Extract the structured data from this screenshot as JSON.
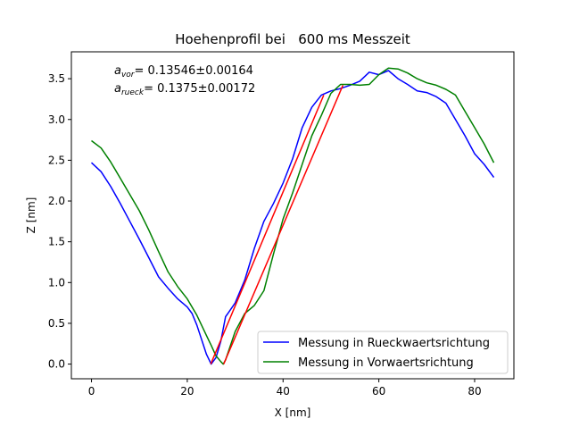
{
  "chart_data": {
    "type": "line",
    "title": "Hoehenprofil bei   600 ms Messzeit",
    "xlabel": "X [nm]",
    "ylabel": "Z [nm]",
    "xlim": [
      -4.2,
      88.2
    ],
    "ylim": [
      -0.18,
      3.83
    ],
    "xticks": [
      0,
      20,
      40,
      60,
      80
    ],
    "yticks": [
      0.0,
      0.5,
      1.0,
      1.5,
      2.0,
      2.5,
      3.0,
      3.5
    ],
    "xtick_labels": [
      "0",
      "20",
      "40",
      "60",
      "80"
    ],
    "ytick_labels": [
      "0.0",
      "0.5",
      "1.0",
      "1.5",
      "2.0",
      "2.5",
      "3.0",
      "3.5"
    ],
    "grid": false,
    "legend_position": "lower-right",
    "annotations": {
      "vor": {
        "symbol": "a",
        "subscript": "vor",
        "text": "= 0.13546±0.00164"
      },
      "rueck": {
        "symbol": "a",
        "subscript": "rueck",
        "text": "= 0.1375±0.00172"
      }
    },
    "series": [
      {
        "name": "Messung in Rueckwaertsrichtung",
        "color": "#0000ff",
        "x": [
          0,
          2,
          4,
          6,
          8,
          10,
          12,
          14,
          16,
          18,
          20,
          21,
          22,
          23,
          24,
          25,
          26,
          27,
          28,
          30,
          32,
          34,
          36,
          38,
          40,
          42,
          44,
          46,
          48,
          50,
          52,
          54,
          56,
          58,
          60,
          62,
          64,
          66,
          68,
          70,
          72,
          74,
          76,
          78,
          80,
          82,
          84
        ],
        "y": [
          2.47,
          2.36,
          2.18,
          1.97,
          1.75,
          1.53,
          1.3,
          1.07,
          0.93,
          0.8,
          0.7,
          0.62,
          0.48,
          0.3,
          0.12,
          0.0,
          0.08,
          0.28,
          0.58,
          0.75,
          1.03,
          1.42,
          1.75,
          1.97,
          2.22,
          2.52,
          2.9,
          3.15,
          3.3,
          3.35,
          3.38,
          3.42,
          3.47,
          3.58,
          3.55,
          3.6,
          3.5,
          3.43,
          3.35,
          3.33,
          3.28,
          3.2,
          3.0,
          2.8,
          2.58,
          2.45,
          2.29
        ]
      },
      {
        "name": "Messung in Vorwaertsrichtung",
        "color": "#008000",
        "x": [
          0,
          2,
          4,
          6,
          8,
          10,
          12,
          14,
          16,
          18,
          20,
          22,
          24,
          25,
          26,
          27,
          27.5,
          28,
          30,
          32,
          34,
          36,
          38,
          40,
          42,
          44,
          46,
          48,
          50,
          52,
          54,
          56,
          58,
          60,
          62,
          64,
          66,
          68,
          70,
          72,
          74,
          76,
          78,
          80,
          82,
          84
        ],
        "y": [
          2.74,
          2.65,
          2.48,
          2.28,
          2.08,
          1.88,
          1.64,
          1.38,
          1.13,
          0.95,
          0.8,
          0.6,
          0.35,
          0.23,
          0.1,
          0.03,
          0.0,
          0.05,
          0.4,
          0.62,
          0.72,
          0.9,
          1.35,
          1.78,
          2.1,
          2.45,
          2.8,
          3.05,
          3.32,
          3.43,
          3.43,
          3.42,
          3.43,
          3.55,
          3.63,
          3.62,
          3.57,
          3.5,
          3.45,
          3.42,
          3.37,
          3.3,
          3.1,
          2.9,
          2.7,
          2.47
        ]
      }
    ],
    "fit_lines": [
      {
        "color": "#ff0000",
        "x": [
          24.9,
          48.5
        ],
        "y": [
          0.0,
          3.3
        ]
      },
      {
        "color": "#ff0000",
        "x": [
          27.6,
          52.5
        ],
        "y": [
          0.0,
          3.42
        ]
      }
    ]
  }
}
